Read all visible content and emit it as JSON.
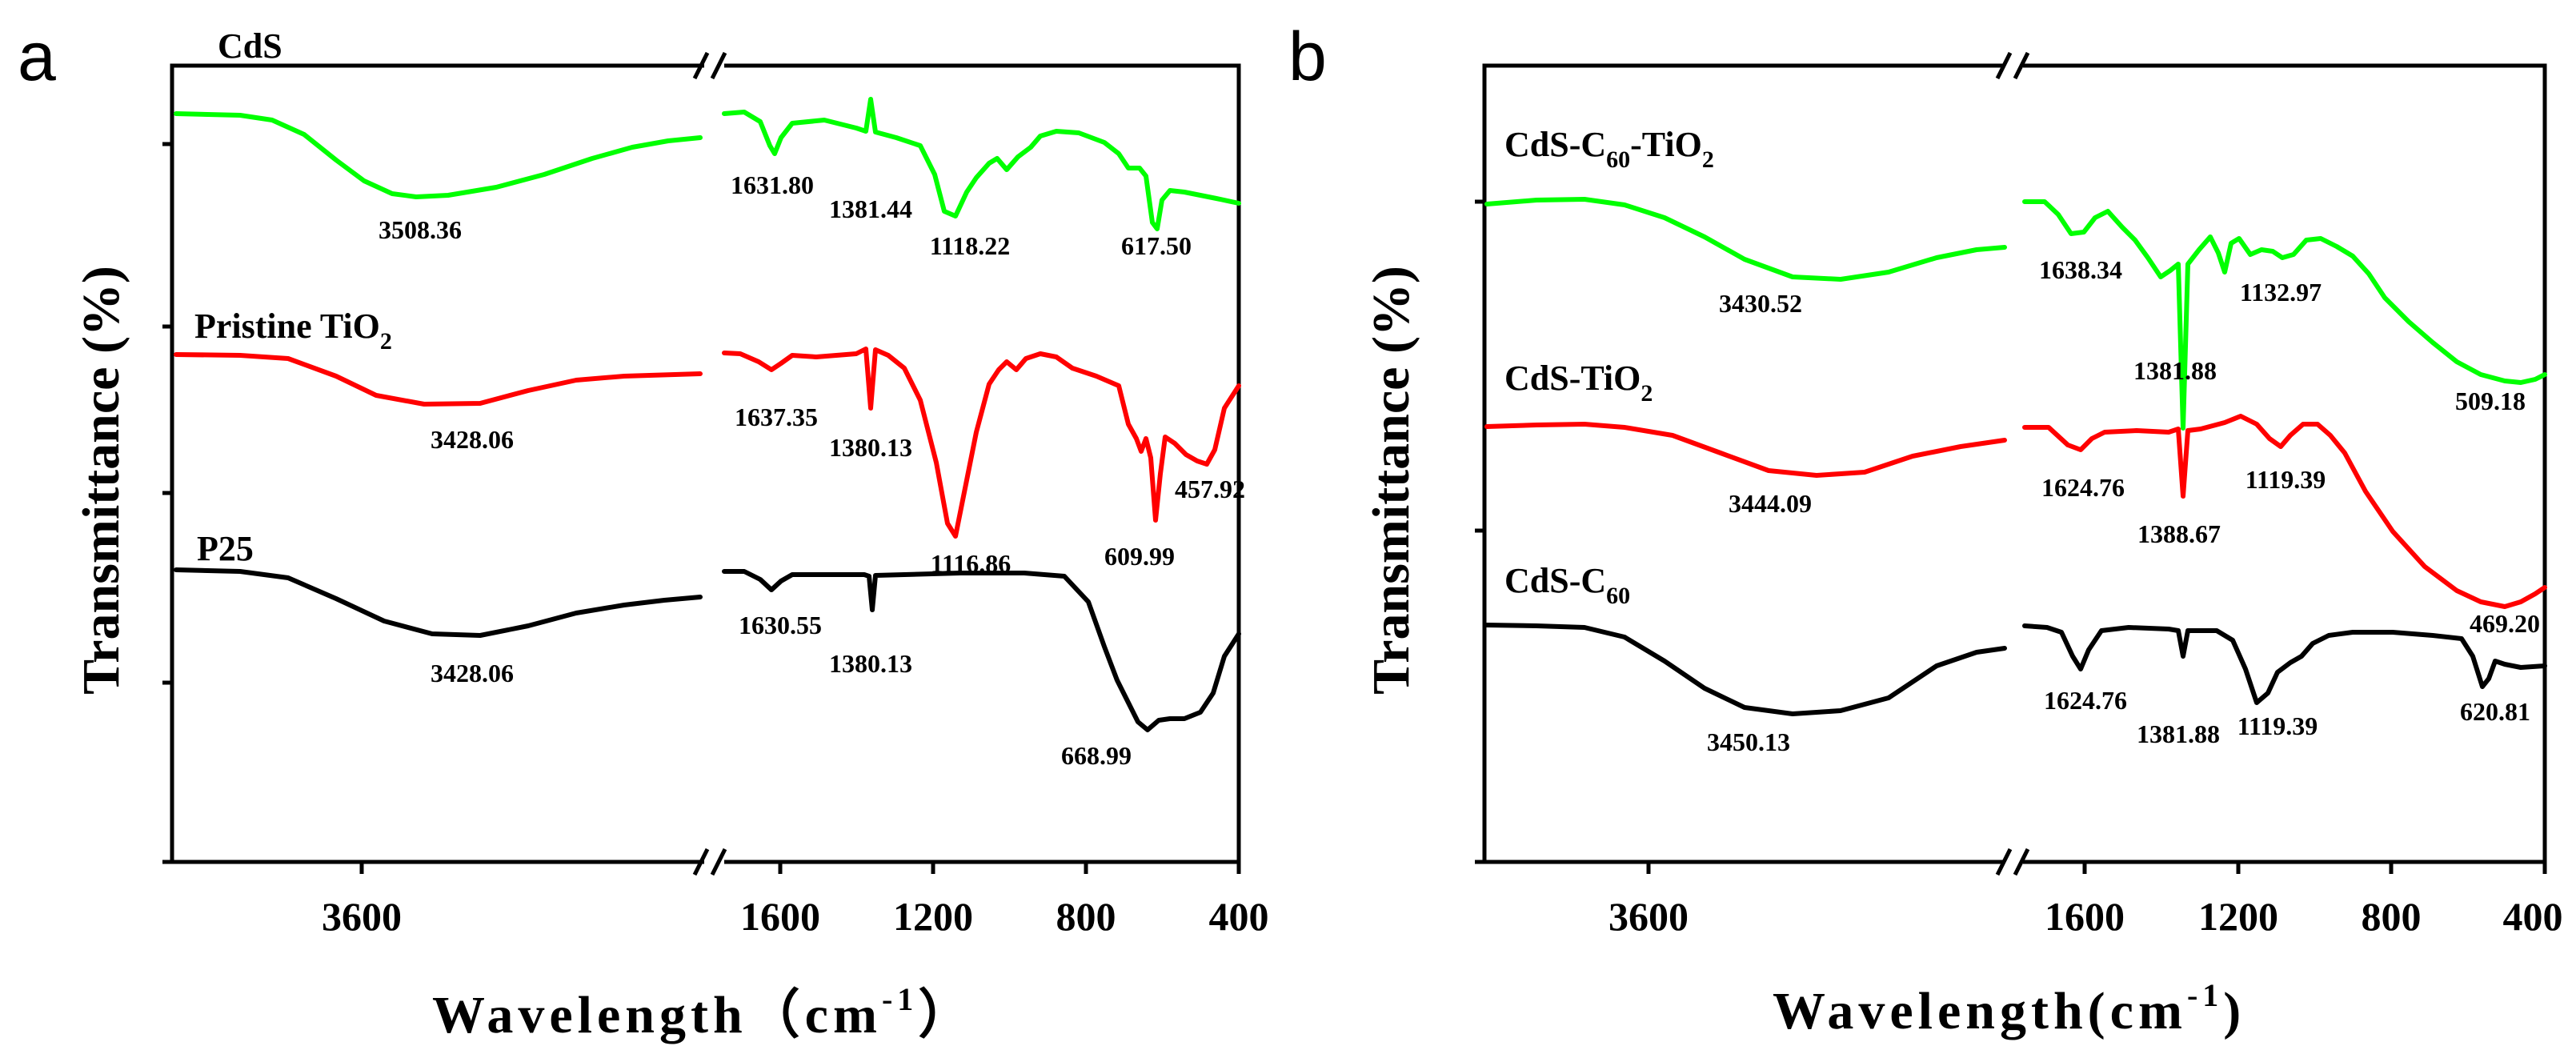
{
  "chart_data": [
    {
      "panel": "a",
      "type": "line",
      "x_break": [
        3000,
        1800
      ],
      "xlabel": "Wavelength（cm",
      "xlabel_sup": "-1",
      "xlabel_close": "）",
      "ylabel": "Transmittance (%)",
      "xticks_left": [
        "3600"
      ],
      "xticks_right": [
        "1600",
        "1200",
        "800",
        "400"
      ],
      "series": [
        {
          "name": "CdS",
          "name_sub": "",
          "name_tail": "",
          "color": "#00ff00",
          "peaks": [
            "3508.36",
            "1631.80",
            "1381.44",
            "1118.22",
            "617.50"
          ]
        },
        {
          "name": "Pristine TiO",
          "name_sub": "2",
          "name_tail": "",
          "color": "#ff0000",
          "peaks": [
            "3428.06",
            "1637.35",
            "1380.13",
            "1116.86",
            "609.99",
            "457.92"
          ]
        },
        {
          "name": "P25",
          "name_sub": "",
          "name_tail": "",
          "color": "#000000",
          "peaks": [
            "3428.06",
            "1630.55",
            "1380.13",
            "668.99"
          ]
        }
      ]
    },
    {
      "panel": "b",
      "type": "line",
      "x_break": [
        3000,
        1800
      ],
      "xlabel": "Wavelength(cm",
      "xlabel_sup": "-1",
      "xlabel_close": ")",
      "ylabel": "Transmittance (%)",
      "xticks_left": [
        "3600"
      ],
      "xticks_right": [
        "1600",
        "1200",
        "800",
        "400"
      ],
      "series": [
        {
          "name": "CdS-C",
          "name_sub": "60",
          "name_tail": "-TiO",
          "name_sub2": "2",
          "color": "#00ff00",
          "peaks": [
            "3430.52",
            "1638.34",
            "1381.88",
            "1132.97",
            "509.18"
          ]
        },
        {
          "name": "CdS-TiO",
          "name_sub": "2",
          "name_tail": "",
          "color": "#ff0000",
          "peaks": [
            "3444.09",
            "1624.76",
            "1388.67",
            "1119.39",
            "469.20"
          ]
        },
        {
          "name": "CdS-C",
          "name_sub": "60",
          "name_tail": "",
          "color": "#000000",
          "peaks": [
            "3450.13",
            "1624.76",
            "1381.88",
            "1119.39",
            "620.81"
          ]
        }
      ]
    }
  ]
}
